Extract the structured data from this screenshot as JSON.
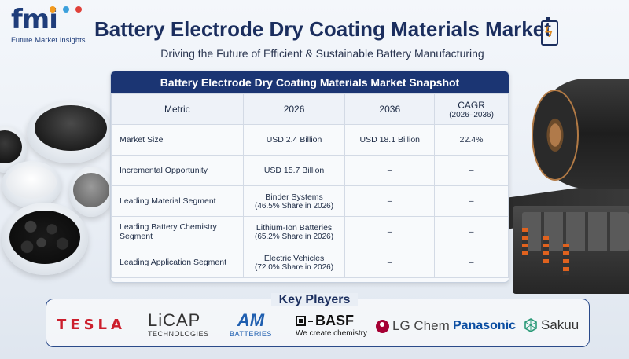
{
  "brand": {
    "logo_text": "fmi",
    "logo_sub": "Future Market Insights"
  },
  "header": {
    "title": "Battery Electrode Dry Coating Materials Market",
    "subtitle": "Driving the Future of Efficient & Sustainable Battery Manufacturing",
    "icon": "battery-bolt-icon"
  },
  "snapshot": {
    "title": "Battery Electrode Dry Coating Materials Market Snapshot",
    "columns": [
      "Metric",
      "2026",
      "2036",
      "CAGR",
      "(2026–2036)"
    ],
    "rows": [
      {
        "metric": "Market Size",
        "v2026": "USD 2.4 Billion",
        "v2026_sub": "",
        "v2036": "USD 18.1 Billion",
        "cagr": "22.4%"
      },
      {
        "metric": "Incremental Opportunity",
        "v2026": "USD 15.7 Billion",
        "v2026_sub": "",
        "v2036": "–",
        "cagr": "–"
      },
      {
        "metric": "Leading Material Segment",
        "v2026": "Binder Systems",
        "v2026_sub": "(46.5% Share in 2026)",
        "v2036": "–",
        "cagr": "–"
      },
      {
        "metric": "Leading Battery Chemistry Segment",
        "v2026": "Lithium-Ion Batteries",
        "v2026_sub": "(65.2% Share in 2026)",
        "v2036": "–",
        "cagr": "–"
      },
      {
        "metric": "Leading Application Segment",
        "v2026": "Electric Vehicles",
        "v2026_sub": "(72.0% Share in 2026)",
        "v2036": "–",
        "cagr": "–"
      }
    ]
  },
  "key_players": {
    "title": "Key Players",
    "players": [
      {
        "name": "TESLA",
        "sub": ""
      },
      {
        "name": "LiCAP",
        "sub": "TECHNOLOGIES"
      },
      {
        "name": "AM",
        "sub": "BATTERIES"
      },
      {
        "name": "BASF",
        "sub": "We create chemistry"
      },
      {
        "name": "LG Chem",
        "sub": ""
      },
      {
        "name": "Panasonic",
        "sub": ""
      },
      {
        "name": "Sakuu",
        "sub": ""
      }
    ]
  },
  "colors": {
    "navy": "#1b3573",
    "title": "#1b2e5e",
    "tesla_red": "#cc1f2d",
    "lg_red": "#a50034",
    "panasonic_blue": "#0b4ea2",
    "am_blue": "#1f5fb0",
    "sakuu_teal": "#2a9a78"
  }
}
